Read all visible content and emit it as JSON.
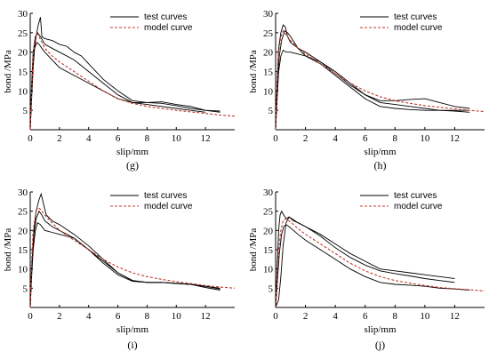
{
  "chart_data": [
    {
      "type": "line",
      "panel_label": "(g)",
      "xlabel": "slip/mm",
      "ylabel": "bond /MPa",
      "xlim": [
        0,
        14
      ],
      "ylim": [
        0,
        30
      ],
      "xticks": [
        0,
        2,
        4,
        6,
        8,
        10,
        12
      ],
      "yticks": [
        0,
        5,
        10,
        15,
        20,
        25,
        30
      ],
      "yticklabels": [
        "",
        "5",
        "10",
        "15",
        "20",
        "25",
        "30"
      ],
      "legend_position": "top-right",
      "legend": [
        "test curves",
        "model curve"
      ],
      "series": [
        {
          "name": "test curves",
          "style": "solid",
          "color": "#000000",
          "x": [
            0,
            0.1,
            0.25,
            0.4,
            0.55,
            0.7,
            0.8,
            1.0,
            1.5,
            2,
            2.5,
            3,
            3.5,
            4,
            5,
            6,
            7,
            8,
            9,
            10,
            11,
            12,
            13
          ],
          "y": [
            0,
            10,
            20,
            24,
            27,
            29,
            24,
            23.5,
            23,
            22,
            21.5,
            20,
            19,
            17,
            13,
            10,
            7.5,
            7,
            7.2,
            6.5,
            6,
            5,
            4.5
          ]
        },
        {
          "name": "",
          "style": "solid",
          "color": "#000000",
          "x": [
            0,
            0.1,
            0.2,
            0.35,
            0.5,
            0.7,
            1.0,
            1.5,
            2,
            3,
            4,
            5,
            6,
            7,
            8,
            9,
            10,
            11,
            12,
            13
          ],
          "y": [
            0,
            12,
            20,
            24,
            25,
            24,
            22,
            21,
            20,
            18,
            15,
            12,
            9,
            7,
            7,
            6.8,
            6.2,
            5.5,
            5,
            4.8
          ]
        },
        {
          "name": "",
          "style": "solid",
          "color": "#000000",
          "x": [
            0,
            0.1,
            0.2,
            0.3,
            0.45,
            0.6,
            0.8,
            1.0,
            1.5,
            2,
            3,
            4,
            5,
            6,
            7,
            8,
            9,
            10,
            11,
            12
          ],
          "y": [
            0,
            8,
            16,
            21,
            22.5,
            22,
            21,
            20,
            18,
            16,
            14,
            12,
            10,
            8,
            7,
            6.5,
            6,
            5.5,
            5,
            4.5
          ]
        },
        {
          "name": "model curve",
          "style": "dashed",
          "color": "#c0392b",
          "x": [
            0,
            0.1,
            0.2,
            0.3,
            0.45,
            0.6,
            0.8,
            1.0,
            1.5,
            2,
            3,
            4,
            5,
            6,
            7,
            8,
            9,
            10,
            11,
            12,
            13,
            14
          ],
          "y": [
            0,
            10,
            19,
            23,
            25,
            24,
            22.5,
            21,
            19,
            17.5,
            15,
            12.5,
            10,
            8,
            6.8,
            6,
            5.5,
            5,
            4.6,
            4.2,
            3.8,
            3.5
          ]
        }
      ]
    },
    {
      "type": "line",
      "panel_label": "(h)",
      "xlabel": "slip/mm",
      "ylabel": "bond /MPa",
      "xlim": [
        0,
        14
      ],
      "ylim": [
        0,
        30
      ],
      "xticks": [
        0,
        2,
        4,
        6,
        8,
        10,
        12
      ],
      "yticks": [
        0,
        5,
        10,
        15,
        20,
        25,
        30
      ],
      "yticklabels": [
        "",
        "5",
        "10",
        "15",
        "20",
        "25",
        "30"
      ],
      "legend_position": "top-right",
      "legend": [
        "test curves",
        "model curve"
      ],
      "series": [
        {
          "name": "test curves",
          "style": "solid",
          "color": "#000000",
          "x": [
            0,
            0.1,
            0.2,
            0.35,
            0.5,
            0.65,
            0.8,
            1.0,
            1.5,
            2,
            3,
            4,
            5,
            6,
            7,
            8,
            9,
            10,
            11,
            12,
            13
          ],
          "y": [
            0,
            12,
            21,
            25,
            27,
            26.5,
            24,
            22.5,
            21,
            20,
            17.5,
            15,
            12,
            9,
            7,
            6.5,
            6,
            5.5,
            5,
            4.8,
            4.5
          ]
        },
        {
          "name": "",
          "style": "solid",
          "color": "#000000",
          "x": [
            0,
            0.1,
            0.2,
            0.35,
            0.5,
            0.7,
            1.0,
            1.5,
            2,
            3,
            4,
            5,
            6,
            7,
            8,
            9,
            10,
            11,
            12,
            13
          ],
          "y": [
            0,
            8,
            15,
            19,
            20.5,
            20,
            20,
            19.5,
            19,
            17.5,
            14.5,
            11.5,
            9,
            7.5,
            7.5,
            7.8,
            8,
            7,
            6,
            5.5
          ]
        },
        {
          "name": "",
          "style": "solid",
          "color": "#000000",
          "x": [
            0,
            0.1,
            0.25,
            0.4,
            0.6,
            0.8,
            1.0,
            1.5,
            2,
            3,
            4,
            5,
            6,
            7,
            8,
            9,
            10,
            11,
            12,
            13
          ],
          "y": [
            0,
            10,
            19,
            23,
            25.5,
            25,
            24,
            21,
            19,
            17,
            14,
            11,
            8,
            6,
            5.5,
            5.2,
            5,
            5,
            5,
            5
          ]
        },
        {
          "name": "model curve",
          "style": "dashed",
          "color": "#c0392b",
          "x": [
            0,
            0.1,
            0.2,
            0.35,
            0.5,
            0.7,
            1.0,
            1.5,
            2,
            3,
            4,
            5,
            6,
            7,
            8,
            9,
            10,
            11,
            12,
            13,
            14
          ],
          "y": [
            0,
            12,
            20,
            24,
            25.5,
            24.5,
            23,
            21,
            19.5,
            17,
            14.5,
            12,
            10,
            8.5,
            7.5,
            6.8,
            6.2,
            5.8,
            5.4,
            5,
            4.7
          ]
        }
      ]
    },
    {
      "type": "line",
      "panel_label": "(i)",
      "xlabel": "slip/mm",
      "ylabel": "bond /MPa",
      "xlim": [
        0,
        14
      ],
      "ylim": [
        0,
        30
      ],
      "xticks": [
        0,
        2,
        4,
        6,
        8,
        10,
        12
      ],
      "yticks": [
        0,
        5,
        10,
        15,
        20,
        25,
        30
      ],
      "yticklabels": [
        "",
        "5",
        "10",
        "15",
        "20",
        "25",
        "30"
      ],
      "legend_position": "top-right",
      "legend": [
        "test curves",
        "model curve"
      ],
      "series": [
        {
          "name": "test curves",
          "style": "solid",
          "color": "#000000",
          "x": [
            0,
            0.1,
            0.25,
            0.4,
            0.6,
            0.75,
            0.9,
            1.1,
            1.5,
            2,
            3,
            4,
            5,
            6,
            7,
            8,
            9,
            10,
            11,
            12,
            13
          ],
          "y": [
            0,
            10,
            20,
            25,
            28,
            29.5,
            27,
            24,
            22.5,
            21.5,
            19,
            16,
            12.5,
            9,
            7,
            6.5,
            6.5,
            6.2,
            6,
            5.5,
            5
          ]
        },
        {
          "name": "",
          "style": "solid",
          "color": "#000000",
          "x": [
            0,
            0.1,
            0.2,
            0.35,
            0.5,
            0.7,
            1.0,
            1.5,
            2,
            3,
            4,
            5,
            6,
            7,
            8,
            9,
            10,
            11,
            12,
            13
          ],
          "y": [
            0,
            8,
            15,
            20,
            22,
            21.5,
            20,
            19.5,
            19,
            18,
            15,
            11.5,
            8.5,
            6.8,
            6.5,
            6.5,
            6.2,
            6,
            5.5,
            4.8
          ]
        },
        {
          "name": "",
          "style": "solid",
          "color": "#000000",
          "x": [
            0,
            0.1,
            0.25,
            0.4,
            0.6,
            0.8,
            1.0,
            1.5,
            2,
            3,
            4,
            5,
            6,
            7,
            8,
            9,
            10,
            11,
            12,
            13
          ],
          "y": [
            0,
            10,
            19,
            23,
            25,
            24,
            22.5,
            21,
            20,
            18,
            15,
            12,
            9,
            7,
            6.5,
            6.5,
            6.3,
            6,
            5.2,
            4.5
          ]
        },
        {
          "name": "model curve",
          "style": "dashed",
          "color": "#c0392b",
          "x": [
            0,
            0.1,
            0.2,
            0.35,
            0.5,
            0.7,
            1.0,
            1.5,
            2,
            3,
            4,
            5,
            6,
            7,
            8,
            9,
            10,
            11,
            12,
            13,
            14
          ],
          "y": [
            0,
            12,
            20,
            24,
            26,
            25.5,
            24,
            22,
            20,
            17.5,
            15,
            12.5,
            10.5,
            9,
            8,
            7.3,
            6.7,
            6.2,
            5.7,
            5.3,
            5
          ]
        }
      ]
    },
    {
      "type": "line",
      "panel_label": "(j)",
      "xlabel": "slip/mm",
      "ylabel": "bond /MPa",
      "xlim": [
        0,
        14
      ],
      "ylim": [
        0,
        30
      ],
      "xticks": [
        0,
        2,
        4,
        6,
        8,
        10,
        12
      ],
      "yticks": [
        0,
        5,
        10,
        15,
        20,
        25,
        30
      ],
      "yticklabels": [
        "",
        "5",
        "10",
        "15",
        "20",
        "25",
        "30"
      ],
      "legend_position": "top-right",
      "legend": [
        "test curves",
        "model curve"
      ],
      "series": [
        {
          "name": "test curves",
          "style": "solid",
          "color": "#000000",
          "x": [
            0,
            0.1,
            0.2,
            0.3,
            0.4,
            0.55,
            0.7,
            0.9,
            1.2,
            1.5,
            2,
            3,
            4,
            5,
            6,
            7,
            8,
            9,
            10,
            11,
            12
          ],
          "y": [
            0,
            10,
            20,
            24,
            25,
            24,
            23,
            23.5,
            22.5,
            22,
            21,
            19,
            16.5,
            14,
            12,
            10,
            9.5,
            9,
            8.5,
            8,
            7.5
          ]
        },
        {
          "name": "",
          "style": "solid",
          "color": "#000000",
          "x": [
            0,
            0.2,
            0.35,
            0.5,
            0.7,
            0.9,
            1.1,
            1.5,
            2,
            3,
            4,
            5,
            6,
            7,
            8,
            9,
            10,
            11,
            12
          ],
          "y": [
            0,
            2,
            8,
            16,
            22,
            23.5,
            23,
            22,
            21,
            18.5,
            15.5,
            13,
            11,
            9.5,
            8.8,
            8.2,
            7.5,
            7,
            6.5
          ]
        },
        {
          "name": "",
          "style": "solid",
          "color": "#000000",
          "x": [
            0,
            0.1,
            0.25,
            0.4,
            0.55,
            0.7,
            0.9,
            1.2,
            1.5,
            2,
            3,
            4,
            5,
            6,
            7,
            8,
            9,
            10,
            11,
            12,
            13
          ],
          "y": [
            0,
            6,
            14,
            19,
            21,
            21.5,
            21,
            20,
            19,
            17.5,
            15,
            12.5,
            10,
            8,
            6.5,
            6,
            5.8,
            5.5,
            5,
            4.8,
            4.5
          ]
        },
        {
          "name": "model curve",
          "style": "dashed",
          "color": "#c0392b",
          "x": [
            0,
            0.1,
            0.2,
            0.35,
            0.5,
            0.7,
            0.9,
            1.2,
            1.5,
            2,
            3,
            4,
            5,
            6,
            7,
            8,
            9,
            10,
            11,
            12,
            13,
            14
          ],
          "y": [
            0,
            8,
            15,
            20,
            22.5,
            23,
            22.5,
            21.5,
            20.5,
            19,
            16.5,
            14,
            11.5,
            9.5,
            8,
            7,
            6.3,
            5.7,
            5.2,
            4.9,
            4.6,
            4.3
          ]
        }
      ]
    }
  ]
}
